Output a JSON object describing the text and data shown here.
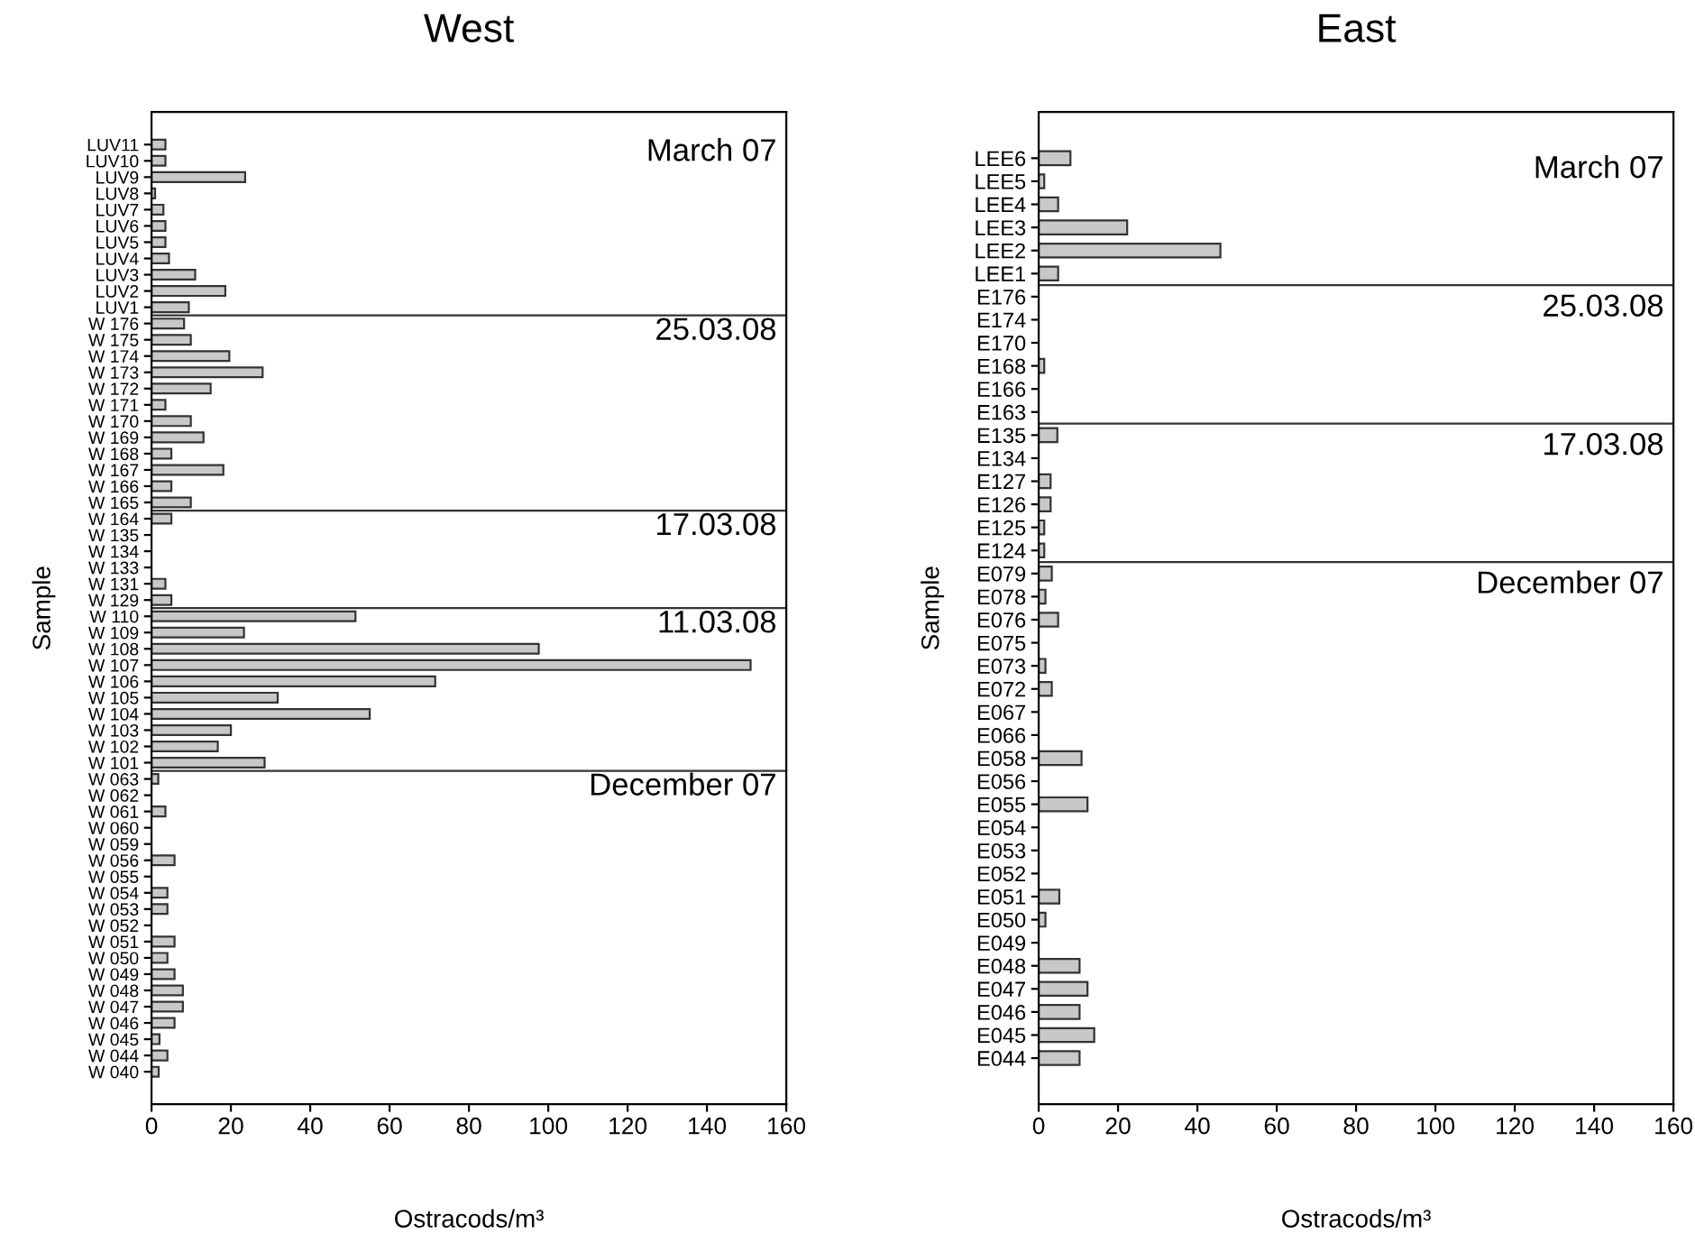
{
  "chart_data": [
    {
      "type": "bar",
      "orientation": "horizontal",
      "title": "West",
      "xlabel": "Ostracods/m³",
      "ylabel": "Sample",
      "color": "#c8c8c8",
      "categories": [
        "LUV11",
        "LUV10",
        "LUV9",
        "LUV8",
        "LUV7",
        "LUV6",
        "LUV5",
        "LUV4",
        "LUV3",
        "LUV2",
        "LUV1",
        "W 176",
        "W 175",
        "W 174",
        "W 173",
        "W 172",
        "W 171",
        "W 170",
        "W 169",
        "W 168",
        "W 167",
        "W 166",
        "W 165",
        "W 164",
        "W 135",
        "W 134",
        "W 133",
        "W 131",
        "W 129",
        "W 110",
        "W 109",
        "W 108",
        "W 107",
        "W 106",
        "W 105",
        "W 104",
        "W 103",
        "W 102",
        "W 101",
        "W 063",
        "W 062",
        "W 061",
        "W 060",
        "W 059",
        "W 056",
        "W 055",
        "W 054",
        "W 053",
        "W 052",
        "W 051",
        "W 050",
        "W 049",
        "W 048",
        "W 047",
        "W 046",
        "W 045",
        "W 044",
        "W 040"
      ],
      "values": [
        3.5,
        3.5,
        23.6,
        0.9,
        3,
        3.5,
        3.5,
        4.4,
        11,
        18.6,
        9.4,
        8.2,
        9.9,
        19.6,
        28,
        14.9,
        3.5,
        9.9,
        13.1,
        5,
        18.1,
        5,
        9.9,
        5,
        0,
        0,
        0,
        3.5,
        5,
        51.4,
        23.3,
        97.6,
        151,
        71.5,
        31.8,
        55,
        20,
        16.7,
        28.5,
        1.7,
        0,
        3.5,
        0,
        0,
        5.8,
        0,
        4,
        4,
        0,
        5.8,
        4,
        5.8,
        7.9,
        7.9,
        5.8,
        2,
        4,
        1.8
      ],
      "xlim": [
        0,
        160
      ],
      "xticks": [
        0,
        20,
        40,
        60,
        80,
        100,
        120,
        140,
        160
      ],
      "annotations": [
        "March 07",
        "25.03.08",
        "17.03.08",
        "11.03.08",
        "December 07"
      ]
    },
    {
      "type": "bar",
      "orientation": "horizontal",
      "title": "East",
      "xlabel": "Ostracods/m³",
      "ylabel": "Sample",
      "color": "#c8c8c8",
      "categories": [
        "LEE6",
        "LEE5",
        "LEE4",
        "LEE3",
        "LEE2",
        "LEE1",
        "E176",
        "E174",
        "E170",
        "E168",
        "E166",
        "E163",
        "E135",
        "E134",
        "E127",
        "E126",
        "E125",
        "E124",
        "E079",
        "E078",
        "E076",
        "E075",
        "E073",
        "E072",
        "E067",
        "E066",
        "E058",
        "E056",
        "E055",
        "E054",
        "E053",
        "E052",
        "E051",
        "E050",
        "E049",
        "E048",
        "E047",
        "E046",
        "E045",
        "E044"
      ],
      "values": [
        8,
        1.4,
        4.9,
        22.3,
        45.8,
        4.9,
        0,
        0,
        0,
        1.4,
        0,
        0,
        4.7,
        0,
        3,
        3,
        1.4,
        1.4,
        3.3,
        1.7,
        4.9,
        0,
        1.7,
        3.3,
        0,
        0,
        10.8,
        0,
        12.3,
        0,
        0,
        0,
        5.2,
        1.7,
        0,
        10.3,
        12.3,
        10.3,
        14,
        10.3
      ],
      "xlim": [
        0,
        160
      ],
      "xticks": [
        0,
        20,
        40,
        60,
        80,
        100,
        120,
        140,
        160
      ],
      "annotations": [
        "March 07",
        "25.03.08",
        "17.03.08",
        "December 07"
      ]
    }
  ]
}
